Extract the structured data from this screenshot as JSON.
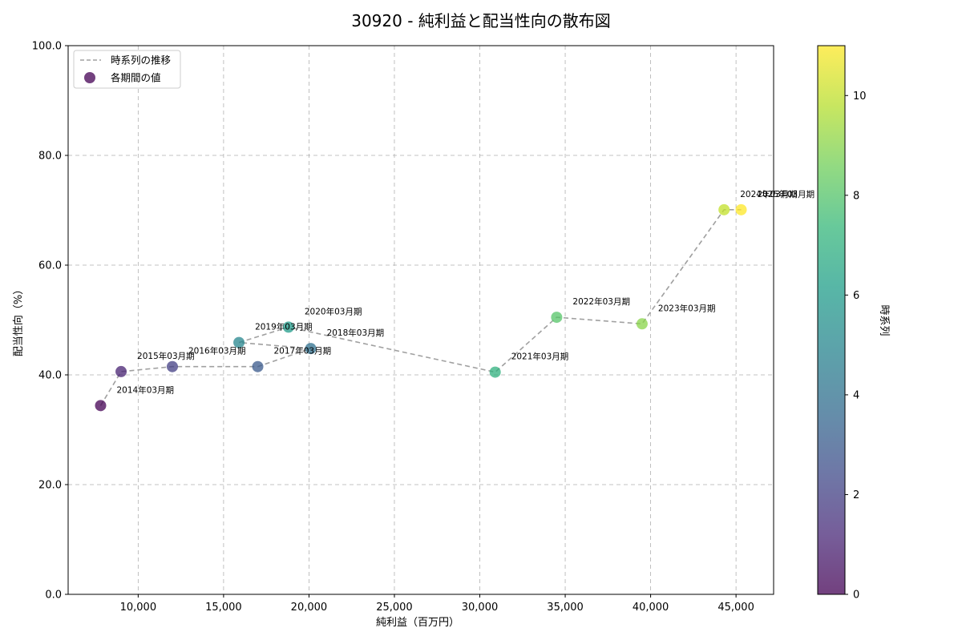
{
  "chart_data": {
    "type": "scatter",
    "title": "30920 - 純利益と配当性向の散布図",
    "xlabel": "純利益（百万円）",
    "ylabel": "配当性向（%）",
    "xlim": [
      5900,
      47200
    ],
    "ylim": [
      0,
      100
    ],
    "x_ticks": [
      10000,
      15000,
      20000,
      25000,
      30000,
      35000,
      40000,
      45000
    ],
    "x_tick_labels": [
      "10,000",
      "15,000",
      "20,000",
      "25,000",
      "30,000",
      "35,000",
      "40,000",
      "45,000"
    ],
    "y_ticks": [
      0,
      20,
      40,
      60,
      80,
      100
    ],
    "y_tick_labels": [
      "0.0",
      "20.0",
      "40.0",
      "60.0",
      "80.0",
      "100.0"
    ],
    "grid": true,
    "legend": {
      "position": "top-left",
      "entries": [
        {
          "label": "時系列の推移",
          "kind": "line"
        },
        {
          "label": "各期間の値",
          "kind": "marker"
        }
      ]
    },
    "colorbar": {
      "label": "時系列",
      "range": [
        0,
        11
      ],
      "ticks": [
        0,
        2,
        4,
        6,
        8,
        10
      ],
      "tick_labels": [
        "0",
        "2",
        "4",
        "6",
        "8",
        "10"
      ]
    },
    "points": [
      {
        "label": "2014年03月期",
        "x": 7800,
        "y": 34.4,
        "t": 0
      },
      {
        "label": "2015年03月期",
        "x": 9000,
        "y": 40.6,
        "t": 1
      },
      {
        "label": "2016年03月期",
        "x": 12000,
        "y": 41.5,
        "t": 2
      },
      {
        "label": "2017年03月期",
        "x": 17000,
        "y": 41.5,
        "t": 3
      },
      {
        "label": "2018年03月期",
        "x": 20100,
        "y": 44.8,
        "t": 4
      },
      {
        "label": "2019年03月期",
        "x": 15900,
        "y": 45.9,
        "t": 5
      },
      {
        "label": "2020年03月期",
        "x": 18800,
        "y": 48.7,
        "t": 6
      },
      {
        "label": "2021年03月期",
        "x": 30900,
        "y": 40.5,
        "t": 7
      },
      {
        "label": "2022年03月期",
        "x": 34500,
        "y": 50.5,
        "t": 8
      },
      {
        "label": "2023年03月期",
        "x": 39500,
        "y": 49.3,
        "t": 9
      },
      {
        "label": "2024年03月期",
        "x": 44300,
        "y": 70.1,
        "t": 10
      },
      {
        "label": "2025年03月期",
        "x": 45300,
        "y": 70.1,
        "t": 11
      }
    ],
    "colors": {
      "trend_line": "#a0a0a0",
      "colormap": "viridis"
    }
  }
}
